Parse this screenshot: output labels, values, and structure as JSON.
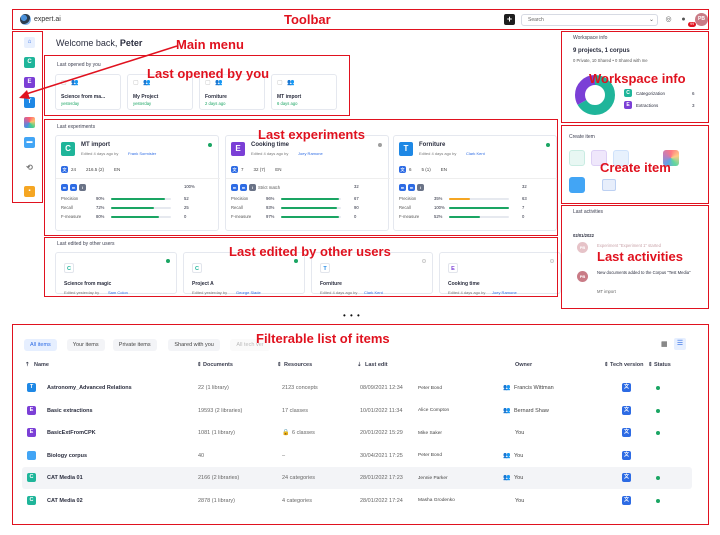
{
  "annotations": {
    "toolbar": "Toolbar",
    "main_menu": "Main menu",
    "last_opened": "Last opened by you",
    "last_experiments": "Last experiments",
    "workspace_info": "Workspace info",
    "create_item": "Create item",
    "last_edited": "Last edited by other users",
    "last_activities": "Last activities",
    "filterable": "Filterable list of items",
    "ellipsis": "• • •"
  },
  "toolbar": {
    "logo_text": "expert.ai",
    "add_label": "+",
    "search_placeholder": "Search",
    "notif_count": "99",
    "avatar": "PB"
  },
  "sidebar": {
    "items": [
      {
        "label": "",
        "icon": "home-icon",
        "color": "#e8f0fe"
      },
      {
        "label": "C",
        "icon": "categorization-icon",
        "color": "#1fb59a"
      },
      {
        "label": "E",
        "icon": "extraction-icon",
        "color": "#7b3fd6"
      },
      {
        "label": "T",
        "icon": "thesaurus-icon",
        "color": "#1e88e5"
      },
      {
        "label": "",
        "icon": "multi-color-icon",
        "color": "#ff6b6b"
      },
      {
        "label": "",
        "icon": "corpus-icon",
        "color": "#42a5f5"
      },
      {
        "label": "",
        "icon": "history-icon",
        "color": "#9e9e9e"
      },
      {
        "label": "",
        "icon": "folder-icon",
        "color": "#f5a623"
      }
    ]
  },
  "welcome": {
    "prefix": "Welcome back,",
    "name": "Peter"
  },
  "last_opened": {
    "title": "Last opened by you",
    "items": [
      {
        "name": "Science from ma...",
        "time": "yesterday"
      },
      {
        "name": "My Project",
        "time": "yesterday"
      },
      {
        "name": "Forniture",
        "time": "2 days ago"
      },
      {
        "name": "MT import",
        "time": "6 days ago"
      }
    ]
  },
  "experiments": {
    "title": "Last experiments",
    "cards": [
      {
        "letter": "C",
        "color": "#1fb59a",
        "name": "MT import",
        "edited": "Edited 4 days ago by",
        "editor": "Frank Sormisler",
        "docs": "24",
        "size": "216.5 (2)",
        "lang": "EN",
        "pct_label": "100%",
        "precision": "90%",
        "recall": "72%",
        "fmeasure": "80%",
        "p": 90,
        "r": 72,
        "f": 80,
        "stat1": "52",
        "stat2": "25",
        "stat3": "0",
        "status_color": "#1aa563"
      },
      {
        "letter": "E",
        "color": "#7b3fd6",
        "name": "Cooking time",
        "edited": "Edited 4 days ago by",
        "editor": "Joey Ramone",
        "docs": "7",
        "size": "32 (7)",
        "lang": "EN",
        "pct_label": "32",
        "precision": "96%",
        "recall": "93%",
        "fmeasure": "97%",
        "p": 96,
        "r": 93,
        "f": 97,
        "stat1": "67",
        "stat2": "90",
        "stat3": "0",
        "status_color": "#9e9e9e",
        "tag": "Strict match"
      },
      {
        "letter": "T",
        "color": "#1e88e5",
        "name": "Forniture",
        "edited": "Edited 4 days ago by",
        "editor": "Clark Kent",
        "docs": "6",
        "size": "5 (1)",
        "lang": "EN",
        "pct_label": "32",
        "precision": "35%",
        "recall": "100%",
        "fmeasure": "52%",
        "p": 35,
        "r": 100,
        "f": 52,
        "stat1": "63",
        "stat2": "7",
        "stat3": "0",
        "status_color": "#1aa563"
      }
    ],
    "metric_labels": [
      "Precision",
      "Recall",
      "F-measure"
    ]
  },
  "last_edited": {
    "title": "Last edited by other users",
    "items": [
      {
        "letter": "C",
        "color": "#1fb59a",
        "name": "Science from magic",
        "meta": "Edited yesterday by",
        "user": "Sam Colon"
      },
      {
        "letter": "C",
        "color": "#1fb59a",
        "name": "Project A",
        "meta": "Edited yesterday by",
        "user": "George Slade"
      },
      {
        "letter": "T",
        "color": "#1e88e5",
        "name": "Forniture",
        "meta": "Edited 4 days ago by",
        "user": "Clark Kent"
      },
      {
        "letter": "E",
        "color": "#7b3fd6",
        "name": "Cooking time",
        "meta": "Edited 4 days ago by",
        "user": "Joey Ramone"
      }
    ]
  },
  "workspace": {
    "title": "Workspace info",
    "summary": "9 projects, 1 corpus",
    "sub": "0 Private, 10 Shared • 0 Shared with me",
    "legend": [
      {
        "letter": "C",
        "color": "#1fb59a",
        "label": "Categorization",
        "value": "6"
      },
      {
        "letter": "E",
        "color": "#7b3fd6",
        "label": "Extractions",
        "value": "3"
      }
    ]
  },
  "create": {
    "title": "Create item"
  },
  "activities": {
    "title": "Last activities",
    "date": "02/01/2022",
    "items": [
      {
        "avatar": "PB",
        "text": "Experiment \"Experiment 1\" started",
        "faded": true
      },
      {
        "avatar": "PB",
        "text": "New documents added to the Corpus \"Test Media\"",
        "sub": "MT import"
      }
    ]
  },
  "list": {
    "tabs": [
      "All items",
      "Your items",
      "Private items",
      "Shared with you",
      "All tech ver"
    ],
    "headers": {
      "name": "Name",
      "documents": "Documents",
      "resources": "Resources",
      "last_edit": "Last edit",
      "owner": "Owner",
      "tech": "Tech version",
      "status": "Status"
    },
    "rows": [
      {
        "letter": "T",
        "color": "#1e88e5",
        "name": "Astronomy_Advanced Relations",
        "docs": "22 (1 library)",
        "res": "2123 concepts",
        "edit": "08/09/2021 12:34",
        "editor": "Peter Bond",
        "owner": "Francis Wittman",
        "shared": true
      },
      {
        "letter": "E",
        "color": "#7b3fd6",
        "name": "Basic extractions",
        "docs": "19593 (2 libraries)",
        "res": "17 classes",
        "edit": "10/01/2022 11:34",
        "editor": "Alice Compton",
        "owner": "Bernard Shaw",
        "shared": true
      },
      {
        "letter": "E",
        "color": "#7b3fd6",
        "name": "BasicExtFromCPK",
        "docs": "1081 (1 library)",
        "res": "6 classes",
        "edit": "20/01/2022 15:29",
        "editor": "Mike Saker",
        "owner": "You",
        "lock": true
      },
      {
        "letter": "",
        "color": "#42a5f5",
        "name": "Biology corpus",
        "docs": "40",
        "res": "–",
        "edit": "30/04/2021 17:25",
        "editor": "Peter Bond",
        "owner": "You",
        "shared": true
      },
      {
        "letter": "C",
        "color": "#1fb59a",
        "name": "CAT Media 01",
        "docs": "2166 (2 libraries)",
        "res": "24 categories",
        "edit": "28/01/2022 17:23",
        "editor": "Jennie Parker",
        "owner": "You",
        "shared": true
      },
      {
        "letter": "C",
        "color": "#1fb59a",
        "name": "CAT Media 02",
        "docs": "2878 (1 library)",
        "res": "4 categories",
        "edit": "28/01/2022 17:24",
        "editor": "Masha Grodenko",
        "owner": "You"
      }
    ]
  }
}
